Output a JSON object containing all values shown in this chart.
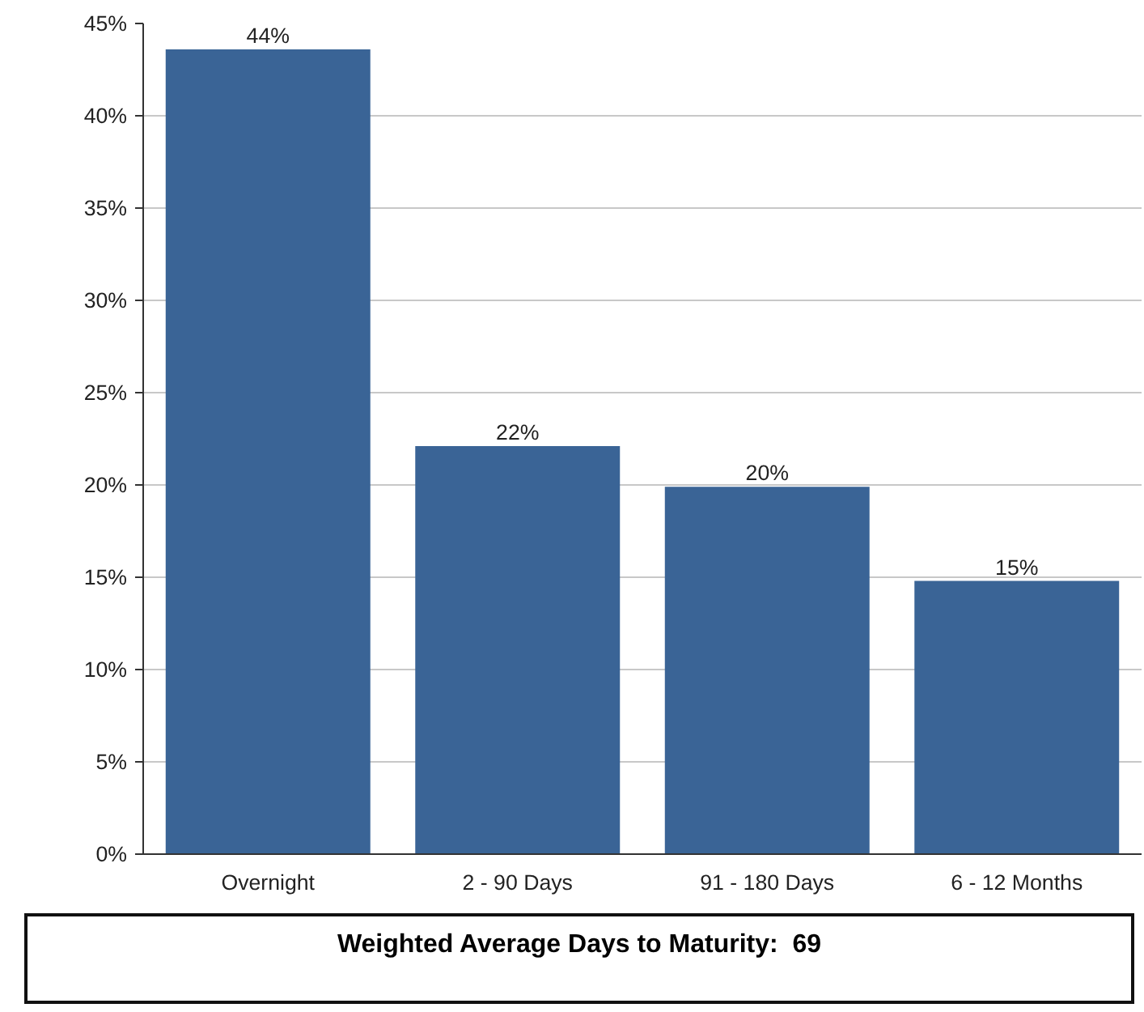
{
  "chart_data": {
    "type": "bar",
    "categories": [
      "Overnight",
      "2 - 90 Days",
      "91 - 180 Days",
      "6 - 12 Months"
    ],
    "values": [
      43.6,
      22.1,
      19.9,
      14.8
    ],
    "value_labels": [
      "44%",
      "22%",
      "20%",
      "15%"
    ],
    "color": "#3a6496",
    "ylim": [
      0,
      45
    ],
    "yticks": [
      {
        "value": 0,
        "label": "0%"
      },
      {
        "value": 5,
        "label": "5%"
      },
      {
        "value": 10,
        "label": "10%"
      },
      {
        "value": 15,
        "label": "15%"
      },
      {
        "value": 20,
        "label": "20%"
      },
      {
        "value": 25,
        "label": "25%"
      },
      {
        "value": 30,
        "label": "30%"
      },
      {
        "value": 35,
        "label": "35%"
      },
      {
        "value": 40,
        "label": "40%"
      },
      {
        "value": 45,
        "label": "45%"
      }
    ],
    "grid": "y",
    "annotations": [
      "Weighted Average Days to Maturity:  69"
    ]
  }
}
